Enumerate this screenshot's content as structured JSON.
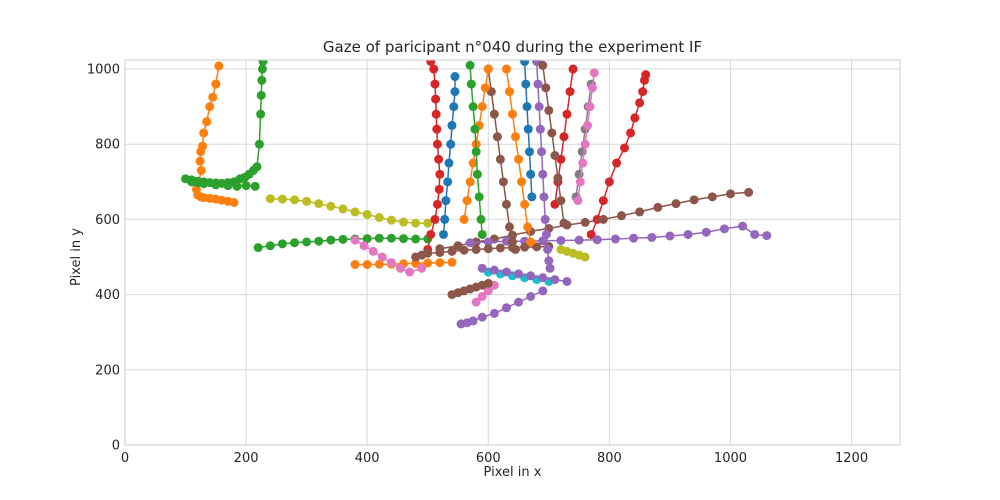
{
  "chart_data": {
    "type": "line",
    "title": "Gaze of paricipant n°040 during the experiment IF",
    "xlabel": "Pixel in x",
    "ylabel": "Pixel in y",
    "xlim": [
      0,
      1280
    ],
    "ylim": [
      0,
      1024
    ],
    "xticks": [
      0,
      200,
      400,
      600,
      800,
      1000,
      1200
    ],
    "yticks": [
      0,
      200,
      400,
      600,
      800,
      1000
    ],
    "grid": true,
    "markers": "circle",
    "series": [
      {
        "color": "#ff7f0e",
        "x": [
          155,
          150,
          145,
          140,
          135,
          130,
          128,
          125,
          124,
          126,
          122,
          118,
          120,
          125,
          130,
          140,
          150,
          160,
          170,
          180
        ],
        "y": [
          1008,
          960,
          925,
          900,
          860,
          830,
          795,
          780,
          755,
          730,
          700,
          680,
          665,
          660,
          658,
          656,
          654,
          651,
          648,
          645
        ]
      },
      {
        "color": "#2ca02c",
        "x": [
          228,
          227,
          226,
          225,
          224,
          222,
          218,
          212,
          205,
          198,
          190,
          180,
          170,
          160,
          150,
          140,
          130,
          120,
          110,
          100,
          110,
          120,
          130,
          150,
          170,
          185,
          200,
          215
        ],
        "y": [
          1020,
          1000,
          970,
          930,
          880,
          800,
          740,
          730,
          720,
          712,
          708,
          700,
          698,
          696,
          697,
          698,
          700,
          702,
          705,
          708,
          700,
          698,
          695,
          692,
          690,
          688,
          690,
          688
        ]
      },
      {
        "color": "#2ca02c",
        "x": [
          220,
          240,
          260,
          280,
          300,
          320,
          340,
          360,
          380,
          400,
          420,
          440,
          460,
          480,
          500
        ],
        "y": [
          525,
          530,
          535,
          538,
          540,
          542,
          545,
          547,
          548,
          549,
          550,
          550,
          549,
          548,
          548
        ]
      },
      {
        "color": "#bcbd22",
        "x": [
          240,
          260,
          280,
          300,
          320,
          340,
          360,
          380,
          400,
          420,
          440,
          460,
          480,
          500
        ],
        "y": [
          655,
          654,
          652,
          648,
          642,
          635,
          628,
          620,
          613,
          605,
          598,
          593,
          590,
          590
        ]
      },
      {
        "color": "#ff7f0e",
        "x": [
          380,
          400,
          420,
          440,
          460,
          480,
          500,
          520,
          540
        ],
        "y": [
          480,
          480,
          481,
          481,
          482,
          483,
          484,
          485,
          486
        ]
      },
      {
        "color": "#e377c2",
        "x": [
          380,
          395,
          410,
          425,
          440,
          455,
          470,
          490
        ],
        "y": [
          545,
          530,
          515,
          500,
          485,
          470,
          460,
          470
        ]
      },
      {
        "color": "#1f77b4",
        "x": [
          545,
          545,
          543,
          540,
          538,
          535,
          533,
          530,
          528,
          526
        ],
        "y": [
          980,
          940,
          900,
          850,
          800,
          750,
          700,
          650,
          600,
          560
        ]
      },
      {
        "color": "#d62728",
        "x": [
          505,
          510,
          512,
          513,
          514,
          515,
          516,
          518,
          520,
          519,
          516,
          512,
          505,
          500
        ],
        "y": [
          1020,
          1000,
          960,
          920,
          880,
          840,
          800,
          760,
          720,
          680,
          640,
          600,
          560,
          520
        ]
      },
      {
        "color": "#d62728",
        "x": [
          860,
          858,
          855,
          850,
          842,
          835,
          825,
          812,
          800,
          790,
          780,
          770
        ],
        "y": [
          985,
          970,
          940,
          910,
          870,
          830,
          790,
          750,
          700,
          650,
          600,
          560
        ]
      },
      {
        "color": "#8c564b",
        "x": [
          1030,
          1000,
          970,
          940,
          910,
          880,
          850,
          820,
          790,
          760,
          730,
          700,
          670,
          640,
          610,
          580,
          550,
          520
        ],
        "y": [
          672,
          668,
          660,
          652,
          642,
          632,
          620,
          610,
          600,
          592,
          585,
          576,
          568,
          558,
          548,
          540,
          530,
          522
        ]
      },
      {
        "color": "#9467bd",
        "x": [
          1060,
          1040,
          1020,
          990,
          960,
          930,
          900,
          870,
          840,
          810,
          780,
          750,
          720,
          690,
          660,
          630,
          600,
          570
        ],
        "y": [
          557,
          560,
          582,
          575,
          566,
          560,
          556,
          552,
          550,
          548,
          546,
          545,
          544,
          543,
          542,
          542,
          540,
          538
        ]
      },
      {
        "color": "#9467bd",
        "x": [
          555,
          565,
          575,
          590,
          610,
          630,
          650,
          670,
          690
        ],
        "y": [
          322,
          325,
          330,
          340,
          350,
          365,
          380,
          395,
          410
        ]
      },
      {
        "color": "#8c564b",
        "x": [
          600,
          605,
          610,
          615,
          620,
          625,
          630,
          635,
          640,
          645
        ],
        "y": [
          1000,
          940,
          880,
          820,
          760,
          700,
          640,
          580,
          540,
          520
        ]
      },
      {
        "color": "#8c564b",
        "x": [
          480,
          490,
          500,
          520,
          540,
          560,
          580,
          600,
          620,
          640,
          660,
          680,
          700
        ],
        "y": [
          500,
          505,
          510,
          512,
          515,
          518,
          520,
          522,
          524,
          525,
          526,
          527,
          528
        ]
      },
      {
        "color": "#ff7f0e",
        "x": [
          600,
          595,
          590,
          585,
          580,
          575,
          570,
          565,
          560
        ],
        "y": [
          1000,
          950,
          900,
          850,
          800,
          750,
          700,
          650,
          600
        ]
      },
      {
        "color": "#2ca02c",
        "x": [
          570,
          572,
          575,
          578,
          580,
          582,
          585,
          588,
          590
        ],
        "y": [
          1010,
          960,
          900,
          840,
          780,
          720,
          660,
          600,
          560
        ]
      },
      {
        "color": "#7f7f7f",
        "x": [
          770,
          765,
          760,
          755,
          750,
          745
        ],
        "y": [
          960,
          900,
          840,
          780,
          720,
          660
        ]
      },
      {
        "color": "#e377c2",
        "x": [
          775,
          772,
          768,
          764,
          760,
          756,
          752,
          748
        ],
        "y": [
          990,
          950,
          900,
          850,
          800,
          750,
          700,
          650
        ]
      },
      {
        "color": "#17becf",
        "x": [
          600,
          620,
          640,
          660,
          680,
          700
        ],
        "y": [
          460,
          455,
          450,
          445,
          440,
          435
        ]
      },
      {
        "color": "#1f77b4",
        "x": [
          660,
          662,
          664,
          666,
          668,
          670,
          672
        ],
        "y": [
          1020,
          960,
          900,
          840,
          780,
          720,
          660
        ]
      },
      {
        "color": "#9467bd",
        "x": [
          680,
          682,
          684,
          686,
          688,
          690,
          692,
          694,
          696,
          698,
          700,
          702
        ],
        "y": [
          1020,
          960,
          900,
          840,
          780,
          720,
          660,
          600,
          560,
          520,
          490,
          470
        ]
      },
      {
        "color": "#d62728",
        "x": [
          740,
          735,
          730,
          725,
          720,
          715,
          710
        ],
        "y": [
          1000,
          940,
          880,
          820,
          760,
          700,
          640
        ]
      },
      {
        "color": "#ff7f0e",
        "x": [
          630,
          635,
          640,
          645,
          650,
          655,
          660,
          665,
          670
        ],
        "y": [
          1000,
          940,
          880,
          820,
          760,
          700,
          640,
          580,
          540
        ]
      },
      {
        "color": "#8c564b",
        "x": [
          690,
          695,
          700,
          705,
          710,
          715,
          720,
          725
        ],
        "y": [
          1010,
          950,
          890,
          830,
          770,
          710,
          650,
          590
        ]
      },
      {
        "color": "#bcbd22",
        "x": [
          720,
          730,
          740,
          750,
          760
        ],
        "y": [
          520,
          515,
          510,
          505,
          500
        ]
      },
      {
        "color": "#e377c2",
        "x": [
          580,
          590,
          600,
          610
        ],
        "y": [
          380,
          395,
          410,
          425
        ]
      },
      {
        "color": "#9467bd",
        "x": [
          590,
          610,
          630,
          650,
          670,
          690,
          710,
          730
        ],
        "y": [
          470,
          465,
          460,
          455,
          450,
          445,
          440,
          435
        ]
      },
      {
        "color": "#8c564b",
        "x": [
          540,
          550,
          560,
          570,
          580,
          590,
          600
        ],
        "y": [
          400,
          405,
          410,
          415,
          420,
          425,
          430
        ]
      }
    ]
  }
}
